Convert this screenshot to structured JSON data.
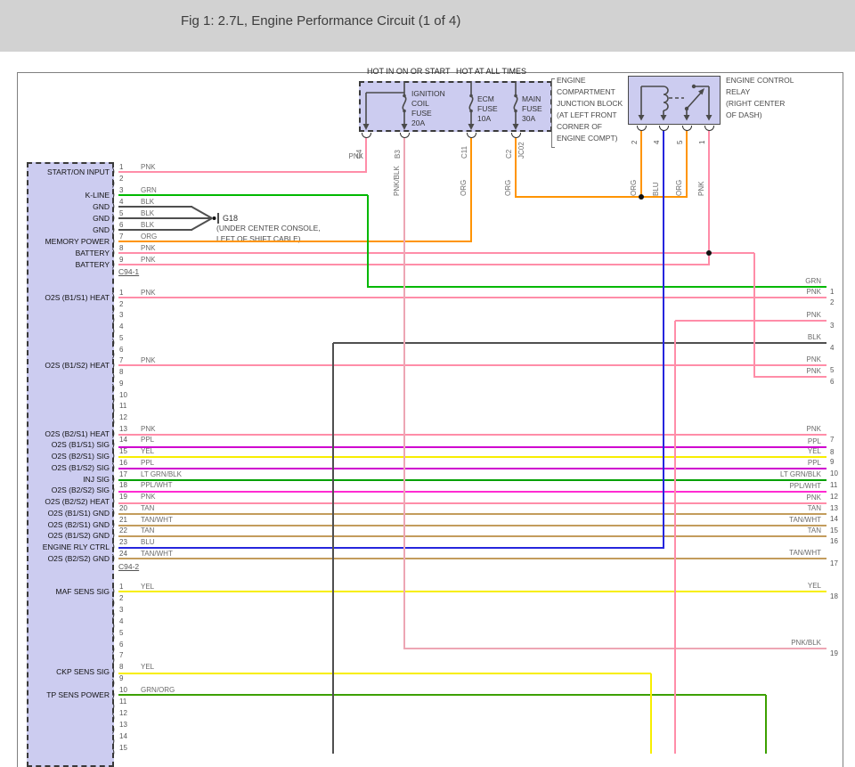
{
  "header": {
    "title": "Fig 1: 2.7L, Engine Performance Circuit (1 of 4)"
  },
  "colors": {
    "PNK": "#ff8da8",
    "PNK/BLK": "#eda6b4",
    "ORG": "#ff9400",
    "GRN": "#00b800",
    "LT GRN/BLK": "#00a000",
    "GRN/ORG": "#3ca000",
    "BLK": "#4f4f4f",
    "YEL": "#f7ee00",
    "PPL": "#cf00cf",
    "PPL/WHT": "#ff2bd2",
    "TAN": "#c39c5c",
    "TAN/WHT": "#c39c5c",
    "BLU": "#2626dd"
  },
  "power_block": {
    "label_hot_on_start": "HOT IN ON OR START",
    "label_hot_all_times": "HOT AT ALL TIMES",
    "note_lines": [
      "ENGINE",
      "COMPARTMENT",
      "JUNCTION BLOCK",
      "(AT LEFT FRONT",
      "CORNER OF",
      "ENGINE COMPT)"
    ],
    "fuses": [
      {
        "lines": [
          "IGNITION",
          "COIL",
          "FUSE",
          "20A"
        ]
      },
      {
        "lines": [
          "ECM",
          "FUSE",
          "10A"
        ]
      },
      {
        "lines": [
          "MAIN",
          "FUSE",
          "30A"
        ]
      }
    ],
    "exits": [
      {
        "id": "C4",
        "wire": "PNK"
      },
      {
        "id": "B3",
        "wire": "PNK/BLK"
      },
      {
        "id": "C11",
        "wire": "ORG"
      },
      {
        "id": "C2",
        "wire": "ORG"
      },
      {
        "id": "JC02",
        "wire": ""
      }
    ]
  },
  "relay": {
    "note_lines": [
      "ENGINE CONTROL",
      "RELAY",
      "(RIGHT CENTER",
      "OF DASH)"
    ],
    "pins": [
      {
        "num": "2",
        "wire": "ORG"
      },
      {
        "num": "4",
        "wire": "BLU"
      },
      {
        "num": "5",
        "wire": "ORG"
      },
      {
        "num": "1",
        "wire": "PNK"
      }
    ]
  },
  "ground": {
    "id": "G18",
    "note_lines": [
      "(UNDER CENTER CONSOLE,",
      "LEFT OF SHIFT CABLE)"
    ]
  },
  "connector1": {
    "id": "C94-1",
    "pins": [
      {
        "n": "1",
        "label": "START/ON INPUT",
        "wire": "PNK"
      },
      {
        "n": "2",
        "label": "",
        "wire": ""
      },
      {
        "n": "3",
        "label": "K-LINE",
        "wire": "GRN"
      },
      {
        "n": "4",
        "label": "GND",
        "wire": "BLK"
      },
      {
        "n": "5",
        "label": "GND",
        "wire": "BLK"
      },
      {
        "n": "6",
        "label": "GND",
        "wire": "BLK"
      },
      {
        "n": "7",
        "label": "MEMORY POWER",
        "wire": "ORG"
      },
      {
        "n": "8",
        "label": "BATTERY",
        "wire": "PNK"
      },
      {
        "n": "9",
        "label": "BATTERY",
        "wire": "PNK"
      }
    ]
  },
  "connector2": {
    "id": "C94-2",
    "pins": [
      {
        "n": "1",
        "label": "O2S (B1/S1) HEAT",
        "wire": "PNK"
      },
      {
        "n": "2",
        "label": "",
        "wire": ""
      },
      {
        "n": "3",
        "label": "",
        "wire": ""
      },
      {
        "n": "4",
        "label": "",
        "wire": ""
      },
      {
        "n": "5",
        "label": "",
        "wire": ""
      },
      {
        "n": "6",
        "label": "",
        "wire": ""
      },
      {
        "n": "7",
        "label": "O2S (B1/S2) HEAT",
        "wire": "PNK"
      },
      {
        "n": "8",
        "label": "",
        "wire": ""
      },
      {
        "n": "9",
        "label": "",
        "wire": ""
      },
      {
        "n": "10",
        "label": "",
        "wire": ""
      },
      {
        "n": "11",
        "label": "",
        "wire": ""
      },
      {
        "n": "12",
        "label": "",
        "wire": ""
      },
      {
        "n": "13",
        "label": "O2S (B2/S1) HEAT",
        "wire": "PNK"
      },
      {
        "n": "14",
        "label": "O2S (B1/S1) SIG",
        "wire": "PPL"
      },
      {
        "n": "15",
        "label": "O2S (B2/S1) SIG",
        "wire": "YEL"
      },
      {
        "n": "16",
        "label": "O2S (B1/S2) SIG",
        "wire": "PPL"
      },
      {
        "n": "17",
        "label": "INJ SIG",
        "wire": "LT GRN/BLK"
      },
      {
        "n": "18",
        "label": "O2S (B2/S2) SIG",
        "wire": "PPL/WHT"
      },
      {
        "n": "19",
        "label": "O2S (B2/S2) HEAT",
        "wire": "PNK"
      },
      {
        "n": "20",
        "label": "O2S (B1/S1) GND",
        "wire": "TAN"
      },
      {
        "n": "21",
        "label": "O2S (B2/S1) GND",
        "wire": "TAN/WHT"
      },
      {
        "n": "22",
        "label": "O2S (B1/S2) GND",
        "wire": "TAN"
      },
      {
        "n": "23",
        "label": "ENGINE RLY CTRL",
        "wire": "BLU"
      },
      {
        "n": "24",
        "label": "O2S (B2/S2) GND",
        "wire": "TAN/WHT"
      }
    ]
  },
  "connector3": {
    "pins": [
      {
        "n": "1",
        "label": "MAF SENS SIG",
        "wire": "YEL"
      },
      {
        "n": "2",
        "label": "",
        "wire": ""
      },
      {
        "n": "3",
        "label": "",
        "wire": ""
      },
      {
        "n": "4",
        "label": "",
        "wire": ""
      },
      {
        "n": "5",
        "label": "",
        "wire": ""
      },
      {
        "n": "6",
        "label": "",
        "wire": ""
      },
      {
        "n": "7",
        "label": "",
        "wire": ""
      },
      {
        "n": "8",
        "label": "CKP SENS SIG",
        "wire": "YEL"
      },
      {
        "n": "9",
        "label": "",
        "wire": ""
      },
      {
        "n": "10",
        "label": "TP SENS POWER",
        "wire": "GRN/ORG"
      },
      {
        "n": "11",
        "label": "",
        "wire": ""
      },
      {
        "n": "12",
        "label": "",
        "wire": ""
      },
      {
        "n": "13",
        "label": "",
        "wire": ""
      },
      {
        "n": "14",
        "label": "",
        "wire": ""
      },
      {
        "n": "15",
        "label": "",
        "wire": ""
      }
    ]
  },
  "right_pins": [
    {
      "n": "1",
      "wire": "GRN"
    },
    {
      "n": "2",
      "wire": "PNK"
    },
    {
      "n": "3",
      "wire": "PNK"
    },
    {
      "n": "4",
      "wire": "BLK"
    },
    {
      "n": "5",
      "wire": "PNK"
    },
    {
      "n": "6",
      "wire": "PNK"
    },
    {
      "n": "7",
      "wire": "PNK"
    },
    {
      "n": "8",
      "wire": "PPL"
    },
    {
      "n": "9",
      "wire": "YEL"
    },
    {
      "n": "10",
      "wire": "PPL"
    },
    {
      "n": "11",
      "wire": "LT GRN/BLK"
    },
    {
      "n": "12",
      "wire": "PPL/WHT"
    },
    {
      "n": "13",
      "wire": "PNK"
    },
    {
      "n": "14",
      "wire": "TAN"
    },
    {
      "n": "15",
      "wire": "TAN/WHT"
    },
    {
      "n": "16",
      "wire": "TAN"
    },
    {
      "n": "17",
      "wire": "TAN/WHT"
    },
    {
      "n": "18",
      "wire": "YEL"
    },
    {
      "n": "19",
      "wire": "PNK/BLK"
    }
  ]
}
